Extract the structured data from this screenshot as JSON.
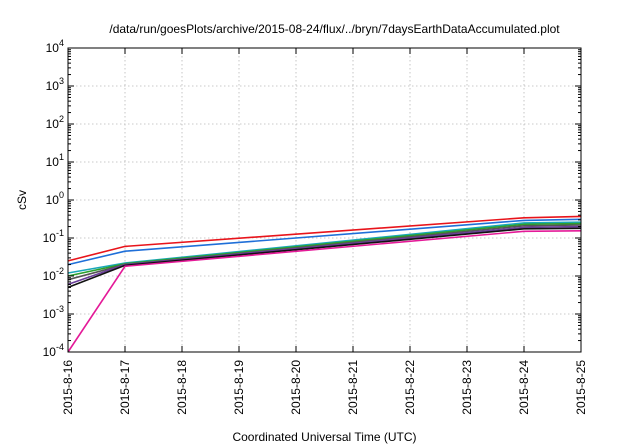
{
  "chart_data": {
    "type": "line",
    "title": "/data/run/goesPlots/archive/2015-08-24/flux/../bryn/7daysEarthDataAccumulated.plot",
    "xlabel": "Coordinated Universal Time (UTC)",
    "ylabel": "cSv",
    "y_scale": "log",
    "ylim": [
      0.0001,
      10000
    ],
    "y_ticks": [
      {
        "base": "10",
        "exp": "-4",
        "value": 0.0001
      },
      {
        "base": "10",
        "exp": "-3",
        "value": 0.001
      },
      {
        "base": "10",
        "exp": "-2",
        "value": 0.01
      },
      {
        "base": "10",
        "exp": "-1",
        "value": 0.1
      },
      {
        "base": "10",
        "exp": "0",
        "value": 1
      },
      {
        "base": "10",
        "exp": "1",
        "value": 10
      },
      {
        "base": "10",
        "exp": "2",
        "value": 100
      },
      {
        "base": "10",
        "exp": "3",
        "value": 1000
      },
      {
        "base": "10",
        "exp": "4",
        "value": 10000
      }
    ],
    "x_ticks": [
      "2015-8-16",
      "2015-8-17",
      "2015-8-18",
      "2015-8-19",
      "2015-8-20",
      "2015-8-21",
      "2015-8-22",
      "2015-8-23",
      "2015-8-24",
      "2015-8-25"
    ],
    "xlim": [
      "2015-8-16",
      "2015-8-25"
    ],
    "grid": true,
    "series": [
      {
        "color": "#e8141b",
        "x": [
          "2015-8-16",
          "2015-8-17",
          "2015-8-24",
          "2015-8-25"
        ],
        "y": [
          0.025,
          0.06,
          0.34,
          0.37
        ]
      },
      {
        "color": "#1f6fd8",
        "x": [
          "2015-8-16",
          "2015-8-17",
          "2015-8-24",
          "2015-8-25"
        ],
        "y": [
          0.02,
          0.045,
          0.29,
          0.31
        ]
      },
      {
        "color": "#19a7b8",
        "x": [
          "2015-8-16",
          "2015-8-17",
          "2015-8-24",
          "2015-8-25"
        ],
        "y": [
          0.012,
          0.022,
          0.25,
          0.26
        ]
      },
      {
        "color": "#2ca02c",
        "x": [
          "2015-8-16",
          "2015-8-17",
          "2015-8-24",
          "2015-8-25"
        ],
        "y": [
          0.01,
          0.021,
          0.23,
          0.24
        ]
      },
      {
        "color": "#555555",
        "x": [
          "2015-8-16",
          "2015-8-17",
          "2015-8-24",
          "2015-8-25"
        ],
        "y": [
          0.008,
          0.02,
          0.21,
          0.22
        ]
      },
      {
        "color": "#6a3d9a",
        "x": [
          "2015-8-16",
          "2015-8-17",
          "2015-8-24",
          "2015-8-25"
        ],
        "y": [
          0.006,
          0.02,
          0.19,
          0.2
        ]
      },
      {
        "color": "#111111",
        "x": [
          "2015-8-16",
          "2015-8-17",
          "2015-8-24",
          "2015-8-25"
        ],
        "y": [
          0.005,
          0.019,
          0.175,
          0.18
        ]
      },
      {
        "color": "#e41a98",
        "x": [
          "2015-8-16",
          "2015-8-17",
          "2015-8-24",
          "2015-8-25"
        ],
        "y": [
          0.0001,
          0.018,
          0.15,
          0.155
        ]
      }
    ]
  }
}
